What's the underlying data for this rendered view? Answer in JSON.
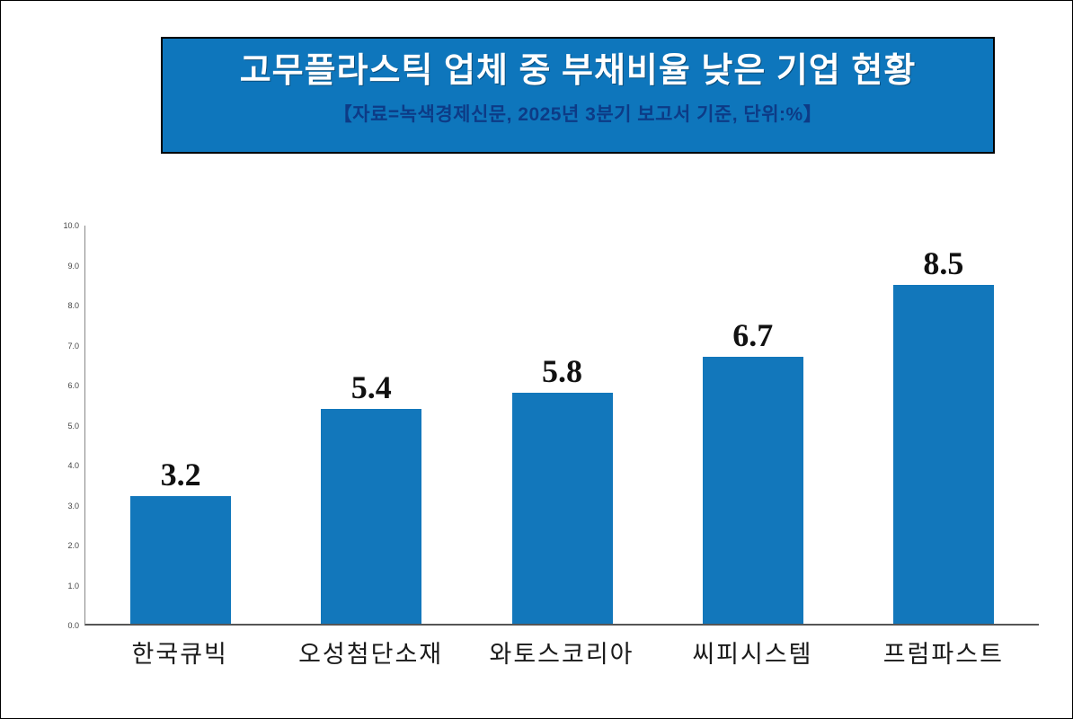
{
  "banner": {
    "title": "고무플라스틱 업체 중 부채비율 낮은 기업 현황",
    "subtitle": "【자료=녹색경제신문, 2025년 3분기 보고서 기준, 단위:%】"
  },
  "chart_data": {
    "type": "bar",
    "title": "고무플라스틱 업체 중 부채비율 낮은 기업 현황",
    "subtitle": "【자료=녹색경제신문, 2025년 3분기 보고서 기준, 단위:%】",
    "categories": [
      "한국큐빅",
      "오성첨단소재",
      "와토스코리아",
      "씨피시스템",
      "프럼파스트"
    ],
    "values": [
      3.2,
      5.4,
      5.8,
      6.7,
      8.5
    ],
    "value_labels": [
      "3.2",
      "5.4",
      "5.8",
      "6.7",
      "8.5"
    ],
    "xlabel": "",
    "ylabel": "",
    "ylim": [
      0,
      10
    ],
    "ytick_step": 1,
    "grid": false,
    "legend": false,
    "unit": "%"
  },
  "colors": {
    "banner_bg": "#0e76bc",
    "banner_border": "#000000",
    "title_text": "#ffffff",
    "subtitle_text": "#0d3b86",
    "bar": "#1277bb",
    "axis": "#888888",
    "value_label": "#111111",
    "category_label": "#1a1a1a"
  }
}
